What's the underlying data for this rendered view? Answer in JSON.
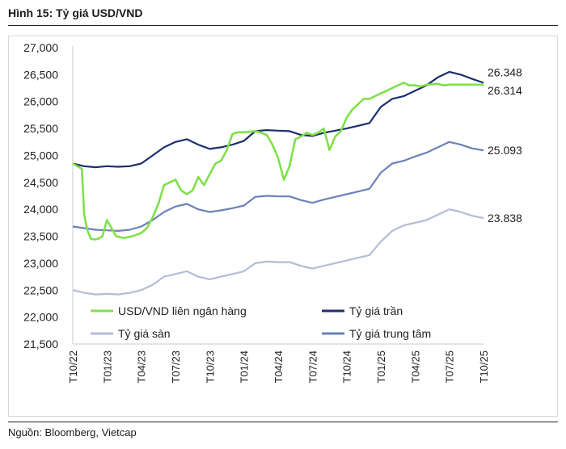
{
  "figure": {
    "title": "Hình 15: Tỷ giá USD/VND",
    "source": "Nguồn: Bloomberg, Vietcap"
  },
  "chart_data": {
    "type": "line",
    "title": "Hình 15: Tỷ giá USD/VND",
    "ylim": [
      21500,
      27000
    ],
    "yticks": [
      21500,
      22000,
      22500,
      23000,
      23500,
      24000,
      24500,
      25000,
      25500,
      26000,
      26500,
      27000
    ],
    "ytick_labels": [
      "21,500",
      "22,000",
      "22,500",
      "23,000",
      "23,500",
      "24,000",
      "24,500",
      "25,000",
      "25,500",
      "26,000",
      "26,500",
      "27,000"
    ],
    "x_ticks": [
      "T10/22",
      "T01/23",
      "T04/23",
      "T07/23",
      "T10/23",
      "T01/24",
      "T04/24",
      "T07/24",
      "T10/24",
      "T01/25",
      "T04/25",
      "T07/25",
      "T10/25"
    ],
    "xlim": [
      0,
      36
    ],
    "legend_position": "bottom",
    "series": [
      {
        "name": "USD/VND liên ngân hàng",
        "color": "#7fe04a",
        "end_label": "26.314",
        "x": [
          0,
          0.4,
          0.8,
          1.0,
          1.3,
          1.6,
          1.9,
          2.2,
          2.6,
          3.0,
          3.4,
          3.8,
          4.2,
          4.6,
          5.0,
          5.5,
          6.0,
          6.5,
          7.0,
          7.5,
          8.0,
          8.5,
          9.0,
          9.5,
          10.0,
          10.5,
          11.0,
          11.5,
          12.0,
          12.5,
          13.0,
          13.5,
          14.0,
          14.5,
          15.0,
          15.5,
          16.0,
          16.5,
          17.0,
          17.5,
          18.0,
          18.5,
          19.0,
          19.5,
          20.0,
          20.5,
          21.0,
          21.5,
          22.0,
          22.5,
          23.0,
          23.5,
          24.0,
          24.5,
          25.0,
          25.5,
          26.0,
          26.5,
          27.0,
          27.5,
          28.0,
          28.5,
          29.0,
          29.5,
          30.0,
          30.5,
          31.0,
          31.5,
          32.0,
          32.5,
          33.0,
          33.5,
          34.0,
          34.5,
          35.0,
          35.5,
          36.0
        ],
        "values": [
          24850,
          24800,
          24750,
          23900,
          23600,
          23450,
          23440,
          23450,
          23500,
          23800,
          23650,
          23500,
          23480,
          23470,
          23490,
          23520,
          23560,
          23650,
          23850,
          24100,
          24450,
          24500,
          24550,
          24350,
          24280,
          24350,
          24600,
          24450,
          24650,
          24850,
          24900,
          25100,
          25400,
          25430,
          25430,
          25440,
          25450,
          25420,
          25380,
          25200,
          24950,
          24550,
          24800,
          25300,
          25350,
          25420,
          25380,
          25420,
          25500,
          25100,
          25350,
          25450,
          25700,
          25850,
          25950,
          26050,
          26050,
          26100,
          26150,
          26200,
          26250,
          26300,
          26350,
          26300,
          26300,
          26280,
          26310,
          26320,
          26330,
          26300,
          26314,
          26314,
          26314,
          26314,
          26314,
          26314,
          26314
        ]
      },
      {
        "name": "Tỷ giá trần",
        "color": "#1c2f6e",
        "end_label": "26.348",
        "x": [
          0,
          1,
          2,
          3,
          4,
          5,
          6,
          7,
          8,
          9,
          10,
          11,
          12,
          13,
          14,
          15,
          16,
          17,
          18,
          19,
          20,
          21,
          22,
          23,
          24,
          25,
          26,
          27,
          28,
          29,
          30,
          31,
          32,
          33,
          34,
          35,
          36
        ],
        "values": [
          24850,
          24800,
          24780,
          24800,
          24790,
          24800,
          24850,
          25000,
          25150,
          25250,
          25300,
          25200,
          25120,
          25150,
          25200,
          25270,
          25450,
          25470,
          25460,
          25450,
          25380,
          25360,
          25420,
          25460,
          25500,
          25550,
          25600,
          25900,
          26050,
          26100,
          26200,
          26300,
          26450,
          26550,
          26500,
          26420,
          26348
        ]
      },
      {
        "name": "Tỷ giá sàn",
        "color": "#b4bcd6",
        "end_label": "23.838",
        "x": [
          0,
          1,
          2,
          3,
          4,
          5,
          6,
          7,
          8,
          9,
          10,
          11,
          12,
          13,
          14,
          15,
          16,
          17,
          18,
          19,
          20,
          21,
          22,
          23,
          24,
          25,
          26,
          27,
          28,
          29,
          30,
          31,
          32,
          33,
          34,
          35,
          36
        ],
        "values": [
          22500,
          22450,
          22420,
          22430,
          22420,
          22450,
          22500,
          22600,
          22750,
          22800,
          22850,
          22750,
          22700,
          22750,
          22800,
          22850,
          23000,
          23030,
          23020,
          23020,
          22950,
          22900,
          22950,
          23000,
          23050,
          23100,
          23150,
          23400,
          23600,
          23700,
          23750,
          23800,
          23900,
          24000,
          23950,
          23880,
          23838
        ]
      },
      {
        "name": "Tỷ giá trung tâm",
        "color": "#6b82b8",
        "end_label": "25.093",
        "x": [
          0,
          1,
          2,
          3,
          4,
          5,
          6,
          7,
          8,
          9,
          10,
          11,
          12,
          13,
          14,
          15,
          16,
          17,
          18,
          19,
          20,
          21,
          22,
          23,
          24,
          25,
          26,
          27,
          28,
          29,
          30,
          31,
          32,
          33,
          34,
          35,
          36
        ],
        "values": [
          23680,
          23650,
          23620,
          23610,
          23600,
          23620,
          23680,
          23800,
          23950,
          24050,
          24100,
          24000,
          23950,
          23980,
          24020,
          24070,
          24230,
          24250,
          24240,
          24240,
          24170,
          24120,
          24180,
          24230,
          24280,
          24330,
          24380,
          24680,
          24850,
          24900,
          24980,
          25050,
          25150,
          25250,
          25200,
          25130,
          25093
        ]
      }
    ]
  }
}
